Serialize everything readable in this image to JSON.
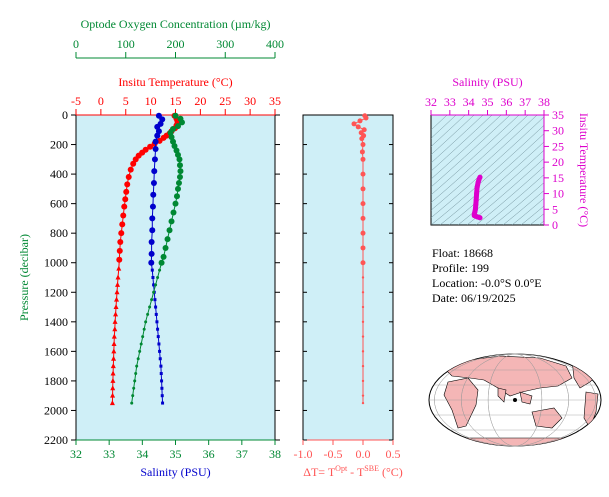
{
  "colors": {
    "temperature": "#ff0000",
    "salinity": "#0000cc",
    "oxygen": "#008833",
    "delta_t": "#ff5555",
    "ts_diagram": "#dd00cc",
    "panel_bg": "#cfeff7",
    "land": "#f4b6b6",
    "ocean": "#ffffff"
  },
  "info": {
    "float_line": "Float:  18668",
    "profile_line": "Profile:  199",
    "location_line": "Location:  -0.0°S   0.0°E",
    "date_line": "Date:  06/19/2025"
  },
  "chart_data": [
    {
      "type": "line",
      "panel": "profile",
      "ylabel": "Pressure (decibar)",
      "ylim": [
        2200,
        0
      ],
      "yticks": [
        0,
        200,
        400,
        600,
        800,
        1000,
        1200,
        1400,
        1600,
        1800,
        2000,
        2200
      ],
      "axes": {
        "temperature": {
          "label": "Insitu Temperature (°C)",
          "range": [
            -5,
            35
          ],
          "ticks": [
            -5,
            0,
            5,
            10,
            15,
            20,
            25,
            30,
            35
          ]
        },
        "salinity": {
          "label": "Salinity (PSU)",
          "range": [
            32,
            38
          ],
          "ticks": [
            32,
            33,
            34,
            35,
            36,
            37,
            38
          ]
        },
        "oxygen": {
          "label": "Optode Oxygen Concentration (µm/kg)",
          "range": [
            0,
            400
          ],
          "ticks": [
            0,
            100,
            200,
            300,
            400
          ]
        }
      },
      "series": [
        {
          "name": "Insitu Temperature",
          "axis": "temperature",
          "points": [
            [
              14.8,
              5
            ],
            [
              15.2,
              25
            ],
            [
              15.4,
              45
            ],
            [
              15.2,
              70
            ],
            [
              14.9,
              90
            ],
            [
              14.2,
              110
            ],
            [
              13.8,
              125
            ],
            [
              13.2,
              140
            ],
            [
              12.6,
              155
            ],
            [
              11.8,
              175
            ],
            [
              10.8,
              195
            ],
            [
              9.9,
              215
            ],
            [
              9.0,
              235
            ],
            [
              8.3,
              255
            ],
            [
              7.6,
              275
            ],
            [
              7.0,
              300
            ],
            [
              6.5,
              330
            ],
            [
              6.0,
              370
            ],
            [
              5.6,
              420
            ],
            [
              5.3,
              470
            ],
            [
              5.1,
              520
            ],
            [
              4.9,
              570
            ],
            [
              4.7,
              620
            ],
            [
              4.5,
              680
            ],
            [
              4.3,
              740
            ],
            [
              4.1,
              800
            ],
            [
              3.9,
              860
            ],
            [
              3.8,
              920
            ],
            [
              3.7,
              980
            ],
            [
              3.6,
              1040
            ],
            [
              3.45,
              1100
            ],
            [
              3.35,
              1150
            ],
            [
              3.25,
              1200
            ],
            [
              3.15,
              1250
            ],
            [
              3.05,
              1300
            ],
            [
              2.95,
              1350
            ],
            [
              2.85,
              1400
            ],
            [
              2.8,
              1450
            ],
            [
              2.7,
              1500
            ],
            [
              2.65,
              1550
            ],
            [
              2.6,
              1600
            ],
            [
              2.55,
              1650
            ],
            [
              2.5,
              1700
            ],
            [
              2.45,
              1750
            ],
            [
              2.42,
              1800
            ],
            [
              2.38,
              1850
            ],
            [
              2.35,
              1900
            ],
            [
              2.32,
              1950
            ]
          ]
        },
        {
          "name": "Salinity",
          "axis": "salinity",
          "points": [
            [
              34.5,
              5
            ],
            [
              34.6,
              30
            ],
            [
              34.55,
              60
            ],
            [
              34.45,
              80
            ],
            [
              34.5,
              110
            ],
            [
              34.45,
              140
            ],
            [
              34.4,
              180
            ],
            [
              34.4,
              230
            ],
            [
              34.38,
              300
            ],
            [
              34.36,
              380
            ],
            [
              34.35,
              460
            ],
            [
              34.33,
              540
            ],
            [
              34.32,
              620
            ],
            [
              34.3,
              700
            ],
            [
              34.3,
              780
            ],
            [
              34.28,
              860
            ],
            [
              34.28,
              940
            ],
            [
              34.27,
              1000
            ],
            [
              34.3,
              1050
            ],
            [
              34.32,
              1100
            ],
            [
              34.34,
              1150
            ],
            [
              34.36,
              1200
            ],
            [
              34.38,
              1250
            ],
            [
              34.4,
              1300
            ],
            [
              34.42,
              1350
            ],
            [
              34.44,
              1400
            ],
            [
              34.46,
              1450
            ],
            [
              34.48,
              1500
            ],
            [
              34.5,
              1550
            ],
            [
              34.52,
              1600
            ],
            [
              34.54,
              1650
            ],
            [
              34.56,
              1700
            ],
            [
              34.57,
              1750
            ],
            [
              34.58,
              1800
            ],
            [
              34.59,
              1850
            ],
            [
              34.6,
              1900
            ],
            [
              34.61,
              1950
            ]
          ]
        },
        {
          "name": "Optode Oxygen Concentration",
          "axis": "oxygen",
          "points": [
            [
              200,
              5
            ],
            [
              210,
              25
            ],
            [
              213,
              50
            ],
            [
              205,
              75
            ],
            [
              195,
              95
            ],
            [
              190,
              120
            ],
            [
              192,
              150
            ],
            [
              195,
              180
            ],
            [
              198,
              210
            ],
            [
              202,
              240
            ],
            [
              205,
              270
            ],
            [
              208,
              300
            ],
            [
              209,
              340
            ],
            [
              210,
              380
            ],
            [
              209,
              420
            ],
            [
              207,
              460
            ],
            [
              205,
              500
            ],
            [
              203,
              550
            ],
            [
              200,
              600
            ],
            [
              196,
              660
            ],
            [
              192,
              720
            ],
            [
              188,
              780
            ],
            [
              184,
              840
            ],
            [
              180,
              900
            ],
            [
              176,
              960
            ],
            [
              172,
              1000
            ],
            [
              168,
              1050
            ],
            [
              164,
              1100
            ],
            [
              160,
              1150
            ],
            [
              156,
              1200
            ],
            [
              152,
              1250
            ],
            [
              148,
              1300
            ],
            [
              144,
              1350
            ],
            [
              140,
              1400
            ],
            [
              137,
              1450
            ],
            [
              134,
              1500
            ],
            [
              131,
              1550
            ],
            [
              128,
              1600
            ],
            [
              125,
              1650
            ],
            [
              122,
              1700
            ],
            [
              120,
              1750
            ],
            [
              118,
              1800
            ],
            [
              116,
              1850
            ],
            [
              114,
              1900
            ],
            [
              112,
              1950
            ]
          ]
        }
      ]
    },
    {
      "type": "scatter",
      "panel": "delta_t",
      "xlabel": "ΔT= T^Opt - T^SBE (°C)",
      "xlim": [
        -1.0,
        0.5
      ],
      "xticks": [
        -1.0,
        -0.5,
        0.0,
        0.5
      ],
      "ylim": [
        2200,
        0
      ],
      "points": [
        [
          0.03,
          5
        ],
        [
          0.05,
          20
        ],
        [
          -0.05,
          40
        ],
        [
          -0.15,
          60
        ],
        [
          -0.08,
          80
        ],
        [
          0.02,
          100
        ],
        [
          -0.03,
          120
        ],
        [
          0.01,
          140
        ],
        [
          -0.02,
          160
        ],
        [
          0.0,
          200
        ],
        [
          -0.01,
          250
        ],
        [
          0.0,
          300
        ],
        [
          0.0,
          400
        ],
        [
          0.0,
          500
        ],
        [
          0.0,
          600
        ],
        [
          0.0,
          700
        ],
        [
          0.0,
          800
        ],
        [
          0.0,
          900
        ],
        [
          0.0,
          1000
        ],
        [
          0.0,
          1100
        ],
        [
          0.0,
          1200
        ],
        [
          0.0,
          1300
        ],
        [
          0.0,
          1400
        ],
        [
          0.0,
          1500
        ],
        [
          0.0,
          1600
        ],
        [
          0.0,
          1700
        ],
        [
          0.0,
          1800
        ],
        [
          0.0,
          1900
        ],
        [
          0.0,
          1950
        ]
      ]
    },
    {
      "type": "line",
      "panel": "ts_diagram",
      "title": "Salinity (PSU)",
      "ylabel": "Insitu Temperature (°C)",
      "xlim": [
        32,
        38
      ],
      "xticks": [
        32,
        33,
        34,
        35,
        36,
        37,
        38
      ],
      "ylim": [
        0,
        35
      ],
      "yticks": [
        0,
        5,
        10,
        15,
        20,
        25,
        30,
        35
      ],
      "points": [
        [
          34.6,
          15.2
        ],
        [
          34.55,
          14.5
        ],
        [
          34.5,
          13.5
        ],
        [
          34.45,
          12.0
        ],
        [
          34.42,
          10.0
        ],
        [
          34.4,
          8.0
        ],
        [
          34.38,
          6.5
        ],
        [
          34.36,
          5.0
        ],
        [
          34.33,
          4.2
        ],
        [
          34.3,
          3.5
        ],
        [
          34.3,
          3.0
        ],
        [
          34.45,
          2.6
        ],
        [
          34.6,
          2.3
        ]
      ]
    }
  ]
}
